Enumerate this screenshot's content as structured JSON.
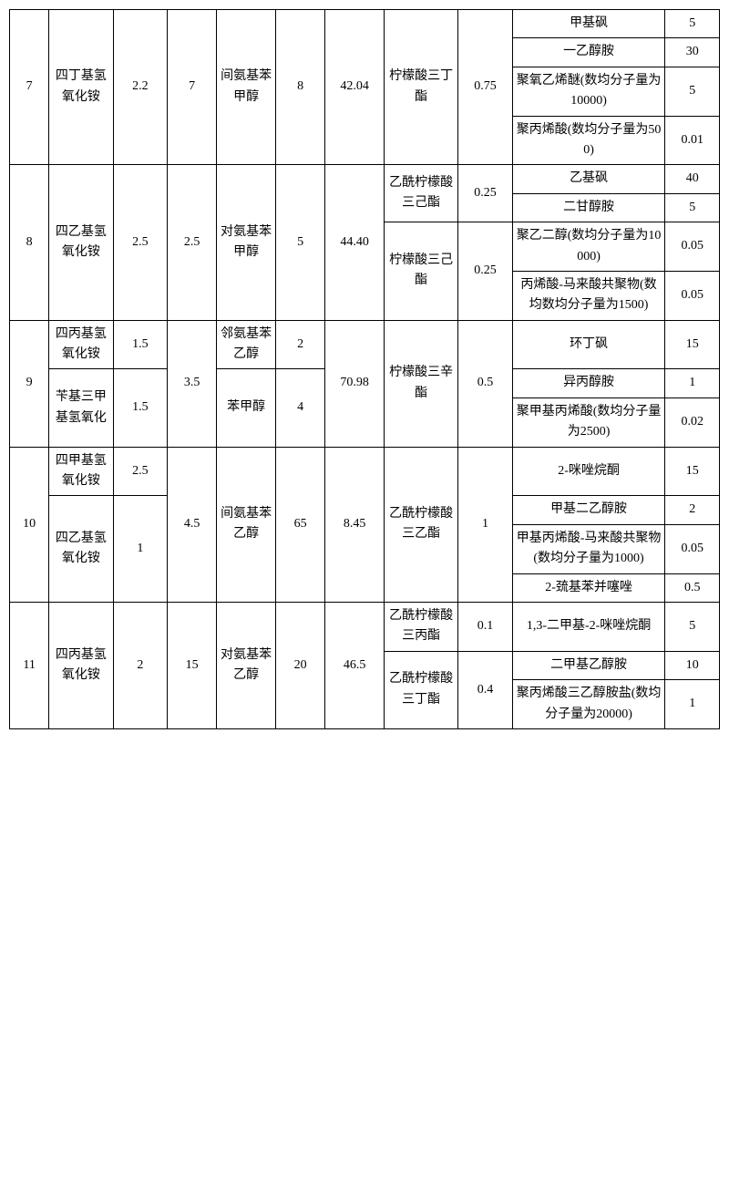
{
  "r7": {
    "id": "7",
    "c2": "四丁基氢氧化铵",
    "c3": "2.2",
    "c4": "7",
    "c5": "间氨基苯甲醇",
    "c6": "8",
    "c7": "42.04",
    "c8": "柠檬酸三丁酯",
    "c9": "0.75",
    "add": [
      {
        "n": "甲基砜",
        "v": "5"
      },
      {
        "n": "一乙醇胺",
        "v": "30"
      },
      {
        "n": "聚氧乙烯醚(数均分子量为10000)",
        "v": "5"
      },
      {
        "n": "聚丙烯酸(数均分子量为500)",
        "v": "0.01"
      }
    ]
  },
  "r8": {
    "id": "8",
    "c2": "四乙基氢氧化铵",
    "c3": "2.5",
    "c4": "2.5",
    "c5": "对氨基苯甲醇",
    "c6": "5",
    "c7": "44.40",
    "c8a": "乙酰柠檬酸三己酯",
    "c9a": "0.25",
    "c8b": "柠檬酸三己酯",
    "c9b": "0.25",
    "add": [
      {
        "n": "乙基砜",
        "v": "40"
      },
      {
        "n": "二甘醇胺",
        "v": "5"
      },
      {
        "n": "聚乙二醇(数均分子量为10000)",
        "v": "0.05"
      },
      {
        "n": "丙烯酸-马来酸共聚物(数均数均分子量为1500)",
        "v": "0.05"
      }
    ]
  },
  "r9": {
    "id": "9",
    "c2a": "四丙基氢氧化铵",
    "c3a": "1.5",
    "c2b": "苄基三甲基氢氧化",
    "c3b": "1.5",
    "c4": "3.5",
    "c5a": "邻氨基苯乙醇",
    "c6a": "2",
    "c5b": "苯甲醇",
    "c6b": "4",
    "c7": "70.98",
    "c8": "柠檬酸三辛酯",
    "c9": "0.5",
    "add": [
      {
        "n": "环丁砜",
        "v": "15"
      },
      {
        "n": "异丙醇胺",
        "v": "1"
      },
      {
        "n": "聚甲基丙烯酸(数均分子量为2500)",
        "v": "0.02"
      }
    ]
  },
  "r10": {
    "id": "10",
    "c2a": "四甲基氢氧化铵",
    "c3a": "2.5",
    "c2b": "四乙基氢氧化铵",
    "c3b": "1",
    "c4": "4.5",
    "c5": "间氨基苯乙醇",
    "c6": "65",
    "c7": "8.45",
    "c8": "乙酰柠檬酸三乙酯",
    "c9": "1",
    "add": [
      {
        "n": "2-咪唑烷酮",
        "v": "15"
      },
      {
        "n": "甲基二乙醇胺",
        "v": "2"
      },
      {
        "n": "甲基丙烯酸-马来酸共聚物(数均分子量为1000)",
        "v": "0.05"
      },
      {
        "n": "2-巯基苯并噻唑",
        "v": "0.5"
      }
    ]
  },
  "r11": {
    "id": "11",
    "c2": "四丙基氢氧化铵",
    "c3": "2",
    "c4": "15",
    "c5": "对氨基苯乙醇",
    "c6": "20",
    "c7": "46.5",
    "c8a": "乙酰柠檬酸三丙酯",
    "c9a": "0.1",
    "c8b": "乙酰柠檬酸三丁酯",
    "c9b": "0.4",
    "add": [
      {
        "n": "1,3-二甲基-2-咪唑烷酮",
        "v": "5"
      },
      {
        "n": "二甲基乙醇胺",
        "v": "10"
      },
      {
        "n": "聚丙烯酸三乙醇胺盐(数均分子量为20000)",
        "v": "1"
      }
    ]
  }
}
